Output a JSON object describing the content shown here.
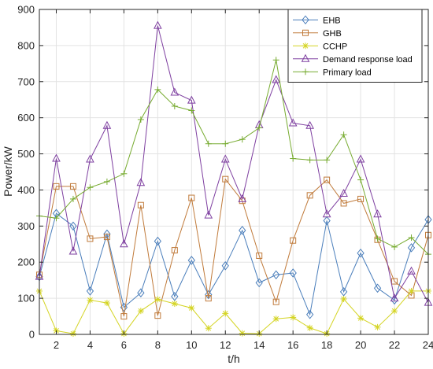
{
  "chart_data": {
    "type": "line",
    "xlabel": "t/h",
    "ylabel": "Power/kW",
    "xlim": [
      1,
      24
    ],
    "ylim": [
      0,
      900
    ],
    "x_ticks": [
      2,
      4,
      6,
      8,
      10,
      12,
      14,
      16,
      18,
      20,
      22,
      24
    ],
    "y_ticks": [
      0,
      100,
      200,
      300,
      400,
      500,
      600,
      700,
      800,
      900
    ],
    "grid": true,
    "legend_position": "top-right",
    "x": [
      1,
      2,
      3,
      4,
      5,
      6,
      7,
      8,
      9,
      10,
      11,
      12,
      13,
      14,
      15,
      16,
      17,
      18,
      19,
      20,
      21,
      22,
      23,
      24
    ],
    "series": [
      {
        "name": "EHB",
        "color": "#4a7ebb",
        "marker": "diamond",
        "values": [
          160,
          335,
          300,
          120,
          278,
          75,
          115,
          258,
          105,
          205,
          110,
          190,
          288,
          143,
          165,
          170,
          55,
          315,
          118,
          225,
          128,
          95,
          240,
          318
        ]
      },
      {
        "name": "GHB",
        "color": "#c07a3a",
        "marker": "square",
        "values": [
          165,
          410,
          410,
          265,
          270,
          50,
          358,
          52,
          233,
          378,
          100,
          430,
          370,
          218,
          90,
          260,
          385,
          428,
          363,
          375,
          262,
          147,
          108,
          275
        ]
      },
      {
        "name": "CCHP",
        "color": "#d4d423",
        "marker": "asterisk",
        "values": [
          120,
          10,
          2,
          95,
          87,
          2,
          65,
          97,
          85,
          73,
          17,
          58,
          3,
          2,
          43,
          47,
          18,
          2,
          98,
          45,
          20,
          65,
          120,
          120
        ]
      },
      {
        "name": "Demand response load",
        "color": "#7e3fa0",
        "marker": "triangle",
        "values": [
          160,
          487,
          230,
          485,
          578,
          250,
          420,
          855,
          670,
          648,
          330,
          485,
          375,
          580,
          705,
          585,
          578,
          333,
          390,
          485,
          333,
          100,
          175,
          88
        ]
      },
      {
        "name": "Primary load",
        "color": "#77ab30",
        "marker": "plus",
        "values": [
          328,
          322,
          375,
          407,
          423,
          445,
          595,
          678,
          632,
          620,
          528,
          528,
          540,
          572,
          760,
          487,
          483,
          483,
          553,
          428,
          265,
          242,
          268,
          222
        ]
      }
    ]
  }
}
